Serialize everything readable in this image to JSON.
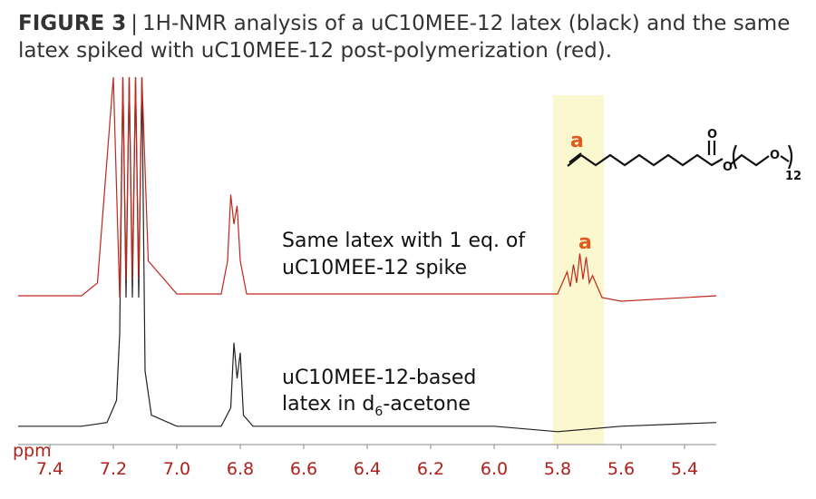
{
  "chart_data": {
    "type": "line",
    "title_label": "FIGURE 3",
    "separator": "|",
    "title_lines": [
      "1H-NMR analysis of a uC10MEE-12 latex (black) and the same",
      "latex spiked with uC10MEE-12 post-polymerization (red)."
    ],
    "xlabel": "ppm",
    "xlim": [
      7.5,
      5.3
    ],
    "xticks": [
      7.4,
      7.2,
      {
        "value": 7.0,
        "label": "7.0"
      },
      6.8,
      6.6,
      6.4,
      6.2,
      {
        "value": 6.0,
        "label": "6.0"
      },
      5.8,
      5.6,
      5.4
    ],
    "ylim": [
      0,
      100
    ],
    "series": [
      {
        "color": "#222222",
        "x": [
          7.5,
          7.3,
          7.22,
          7.19,
          7.18,
          7.17,
          7.16,
          7.15,
          7.14,
          7.13,
          7.12,
          7.11,
          7.1,
          7.08,
          7.0,
          6.86,
          6.83,
          6.82,
          6.81,
          6.8,
          6.79,
          6.76,
          6.5,
          6.0,
          5.8,
          5.6,
          5.3
        ],
        "values": [
          5,
          5,
          6,
          12,
          30,
          100,
          40,
          100,
          40,
          100,
          40,
          100,
          20,
          8,
          5,
          5,
          10,
          27.7,
          18,
          25,
          8,
          5,
          5,
          5,
          3.5,
          5,
          6
        ]
      },
      {
        "color": "#c0281e",
        "x": [
          7.5,
          7.3,
          7.25,
          7.2,
          7.18,
          7.17,
          7.16,
          7.15,
          7.14,
          7.13,
          7.12,
          7.11,
          7.09,
          7.0,
          6.86,
          6.84,
          6.83,
          6.82,
          6.81,
          6.8,
          6.78,
          6.5,
          5.8,
          5.77,
          5.76,
          5.75,
          5.74,
          5.73,
          5.72,
          5.71,
          5.7,
          5.69,
          5.66,
          5.6,
          5.3
        ],
        "values": [
          40.5,
          40.5,
          44,
          100,
          40,
          100,
          45,
          100,
          45,
          100,
          45,
          100,
          50,
          41,
          41,
          50,
          68,
          60,
          65,
          50,
          41,
          41,
          41,
          47,
          43,
          49,
          44,
          52,
          45,
          51,
          44,
          46,
          40,
          39,
          40.5
        ]
      }
    ],
    "annotations": {
      "red_label": [
        "Same latex with 1 eq. of",
        "uC10MEE-12 spike"
      ],
      "black_label": [
        "uC10MEE-12-based"
      ],
      "black_label_2": {
        "text": "latex in d",
        "sub": "6",
        "rest": "-acetone"
      },
      "peak_label": "a",
      "structure": {
        "site": "a",
        "carbonyl_o": "O",
        "ester_o": "O",
        "ether_o": "O",
        "repeat": "12"
      }
    }
  }
}
